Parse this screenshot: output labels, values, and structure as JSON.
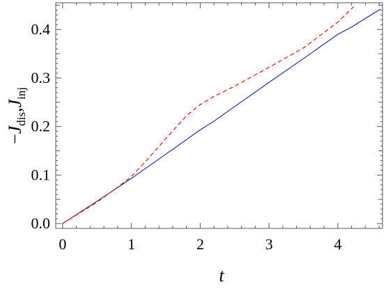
{
  "chart_data": {
    "type": "line",
    "title": "",
    "xlabel": "t",
    "ylabel": {
      "minus": "−",
      "first_var": "J",
      "first_sub": "dis",
      "separator": ",",
      "second_var": "J",
      "second_sub": "inj"
    },
    "xlim": [
      -0.1,
      4.65
    ],
    "ylim": [
      -0.01,
      0.455
    ],
    "xticks": [
      0,
      1,
      2,
      3,
      4
    ],
    "yticks": [
      0.0,
      0.1,
      0.2,
      0.3,
      0.4
    ],
    "xtick_labels": [
      "0",
      "1",
      "2",
      "3",
      "4"
    ],
    "ytick_labels": [
      "0.0",
      "0.1",
      "0.2",
      "0.3",
      "0.4"
    ],
    "grid": false,
    "legend": "none",
    "series": [
      {
        "color": "#3a3a9a",
        "style": "solid",
        "x": [
          0,
          0.5,
          1.0,
          1.5,
          2.0,
          2.2,
          2.5,
          3.0,
          3.5,
          4.0,
          4.2,
          4.62
        ],
        "y": [
          0.0,
          0.046,
          0.093,
          0.143,
          0.193,
          0.211,
          0.241,
          0.291,
          0.34,
          0.39,
          0.405,
          0.442
        ]
      },
      {
        "color": "#e02020",
        "style": "dashed",
        "x": [
          0,
          0.5,
          0.8,
          1.0,
          1.2,
          1.5,
          1.8,
          2.0,
          2.2,
          2.5,
          3.0,
          3.5,
          4.0,
          4.23
        ],
        "y": [
          0.0,
          0.044,
          0.075,
          0.097,
          0.127,
          0.175,
          0.222,
          0.245,
          0.262,
          0.283,
          0.322,
          0.362,
          0.415,
          0.447
        ]
      }
    ]
  }
}
